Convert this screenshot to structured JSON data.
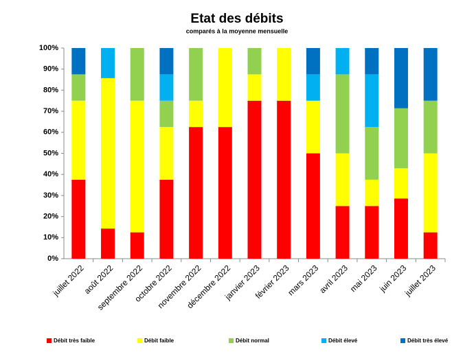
{
  "chart_data": {
    "type": "stacked_bar",
    "title": "Etat des débits",
    "subtitle": "comparés à la moyenne mensuelle",
    "categories": [
      "juillet 2022",
      "août 2022",
      "septembre 2022",
      "octobre 2022",
      "novembre 2022",
      "décembre 2022",
      "janvier 2023",
      "février 2023",
      "mars 2023",
      "avril 2023",
      "mai 2023",
      "juin 2023",
      "juillet 2023"
    ],
    "series": [
      {
        "name": "Débit très faible",
        "color": "#ff0000",
        "values": [
          37.5,
          14.3,
          12.5,
          37.5,
          62.5,
          62.5,
          75,
          75,
          50,
          25,
          25,
          28.6,
          12.5
        ]
      },
      {
        "name": "Débit faible",
        "color": "#ffff00",
        "values": [
          37.5,
          71.4,
          62.5,
          25,
          12.5,
          37.5,
          12.5,
          25,
          25,
          25,
          12.5,
          14.3,
          37.5
        ]
      },
      {
        "name": "Débit normal",
        "color": "#92d050",
        "values": [
          12.5,
          0,
          25,
          12.5,
          25,
          0,
          12.5,
          0,
          0,
          37.5,
          25,
          28.5,
          25
        ]
      },
      {
        "name": "Débit élevé",
        "color": "#00b0f0",
        "values": [
          0,
          14.3,
          0,
          12.5,
          0,
          0,
          0,
          0,
          12.5,
          12.5,
          25,
          0,
          0
        ]
      },
      {
        "name": "Débit très élevé",
        "color": "#0070c0",
        "values": [
          12.5,
          0,
          0,
          12.5,
          0,
          0,
          0,
          0,
          12.5,
          0,
          12.5,
          28.6,
          25
        ]
      }
    ],
    "ylim": [
      0,
      100
    ],
    "yticks": [
      {
        "value": 0,
        "label": "0%"
      },
      {
        "value": 10,
        "label": "10%"
      },
      {
        "value": 20,
        "label": "20%"
      },
      {
        "value": 30,
        "label": "30%"
      },
      {
        "value": 40,
        "label": "40%"
      },
      {
        "value": 50,
        "label": "50%"
      },
      {
        "value": 60,
        "label": "60%"
      },
      {
        "value": 70,
        "label": "70%"
      },
      {
        "value": 80,
        "label": "80%"
      },
      {
        "value": 90,
        "label": "90%"
      },
      {
        "value": 100,
        "label": "100%"
      }
    ],
    "legend": "bottom"
  }
}
